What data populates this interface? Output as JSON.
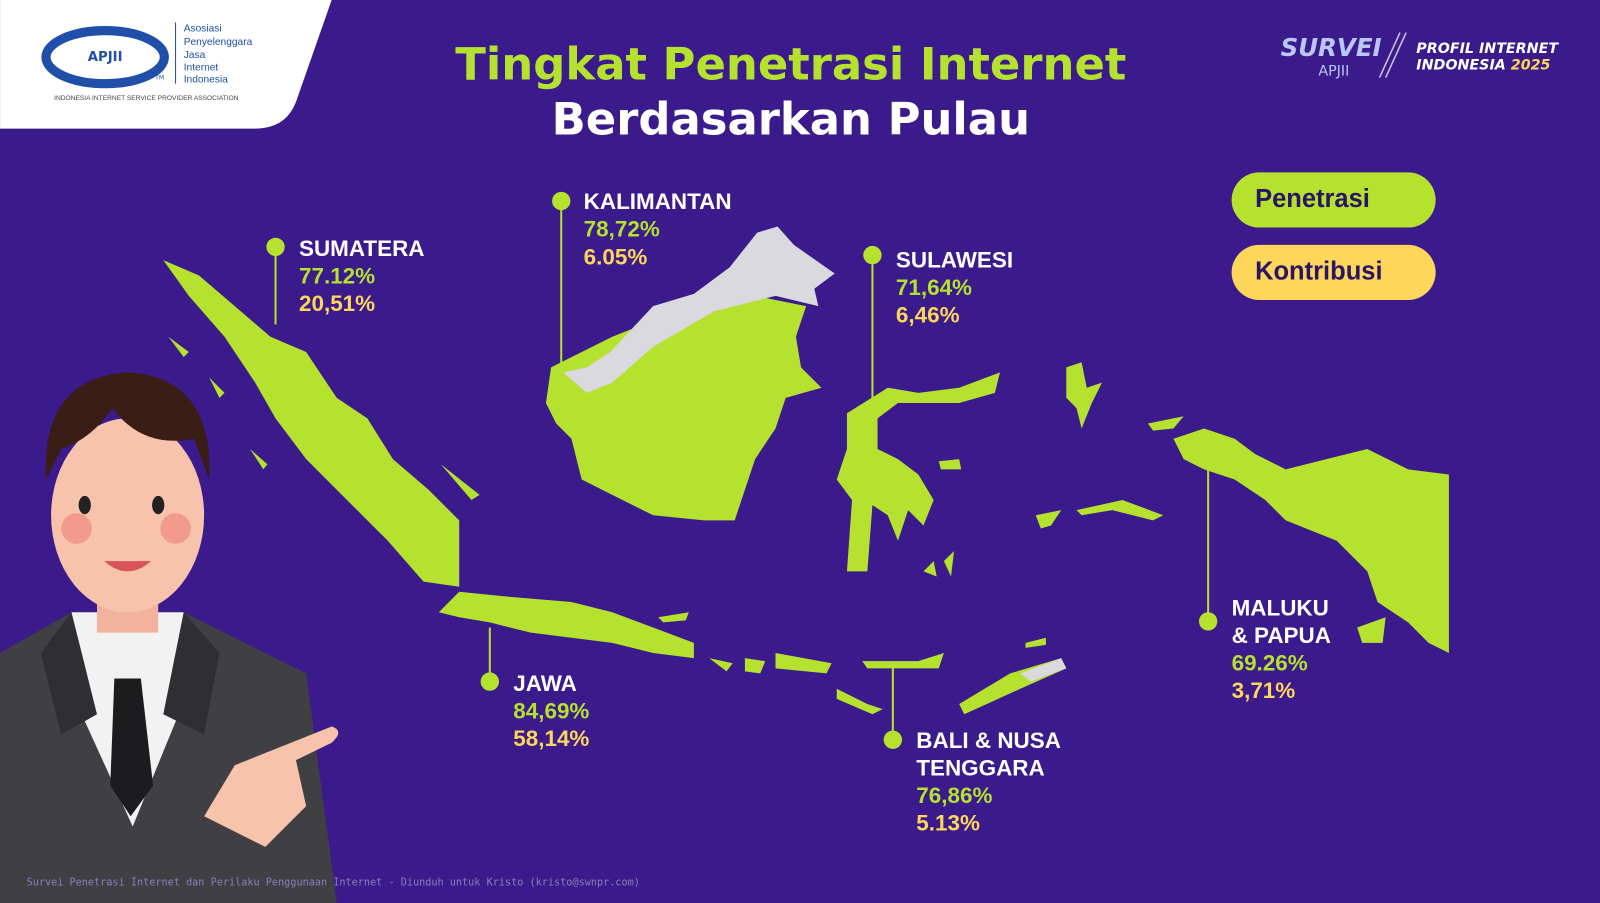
{
  "logo": {
    "name": "APJII",
    "trademark": "TM",
    "lines": [
      "Asosiasi",
      "Penyelenggara",
      "Jasa",
      "Internet",
      "Indonesia"
    ],
    "tagline": "INDONESIA INTERNET SERVICE PROVIDER ASSOCIATION"
  },
  "brand": {
    "survei": "SURVEI",
    "apjii": "APJII",
    "line1": "PROFIL INTERNET",
    "line2": "INDONESIA",
    "year": "2025"
  },
  "title": {
    "line1": "Tingkat Penetrasi Internet",
    "line2": "Berdasarkan Pulau"
  },
  "legend": [
    "Penetrasi",
    "Kontribusi"
  ],
  "regions": [
    {
      "name": [
        "SUMATERA"
      ],
      "penetration": "77.12%",
      "contribution": "20,51%"
    },
    {
      "name": [
        "KALIMANTAN"
      ],
      "penetration": "78,72%",
      "contribution": "6.05%"
    },
    {
      "name": [
        "SULAWESI"
      ],
      "penetration": "71,64%",
      "contribution": "6,46%"
    },
    {
      "name": [
        "JAWA"
      ],
      "penetration": "84,69%",
      "contribution": "58,14%"
    },
    {
      "name": [
        "BALI & NUSA",
        "TENGGARA"
      ],
      "penetration": "76,86%",
      "contribution": "5.13%"
    },
    {
      "name": [
        "MALUKU",
        "& PAPUA"
      ],
      "penetration": "69.26%",
      "contribution": "3,71%"
    }
  ],
  "footer": "Survei Penetrasi Internet dan Perilaku Penggunaan Internet - Diunduh untuk Kristo (kristo@swnpr.com)"
}
